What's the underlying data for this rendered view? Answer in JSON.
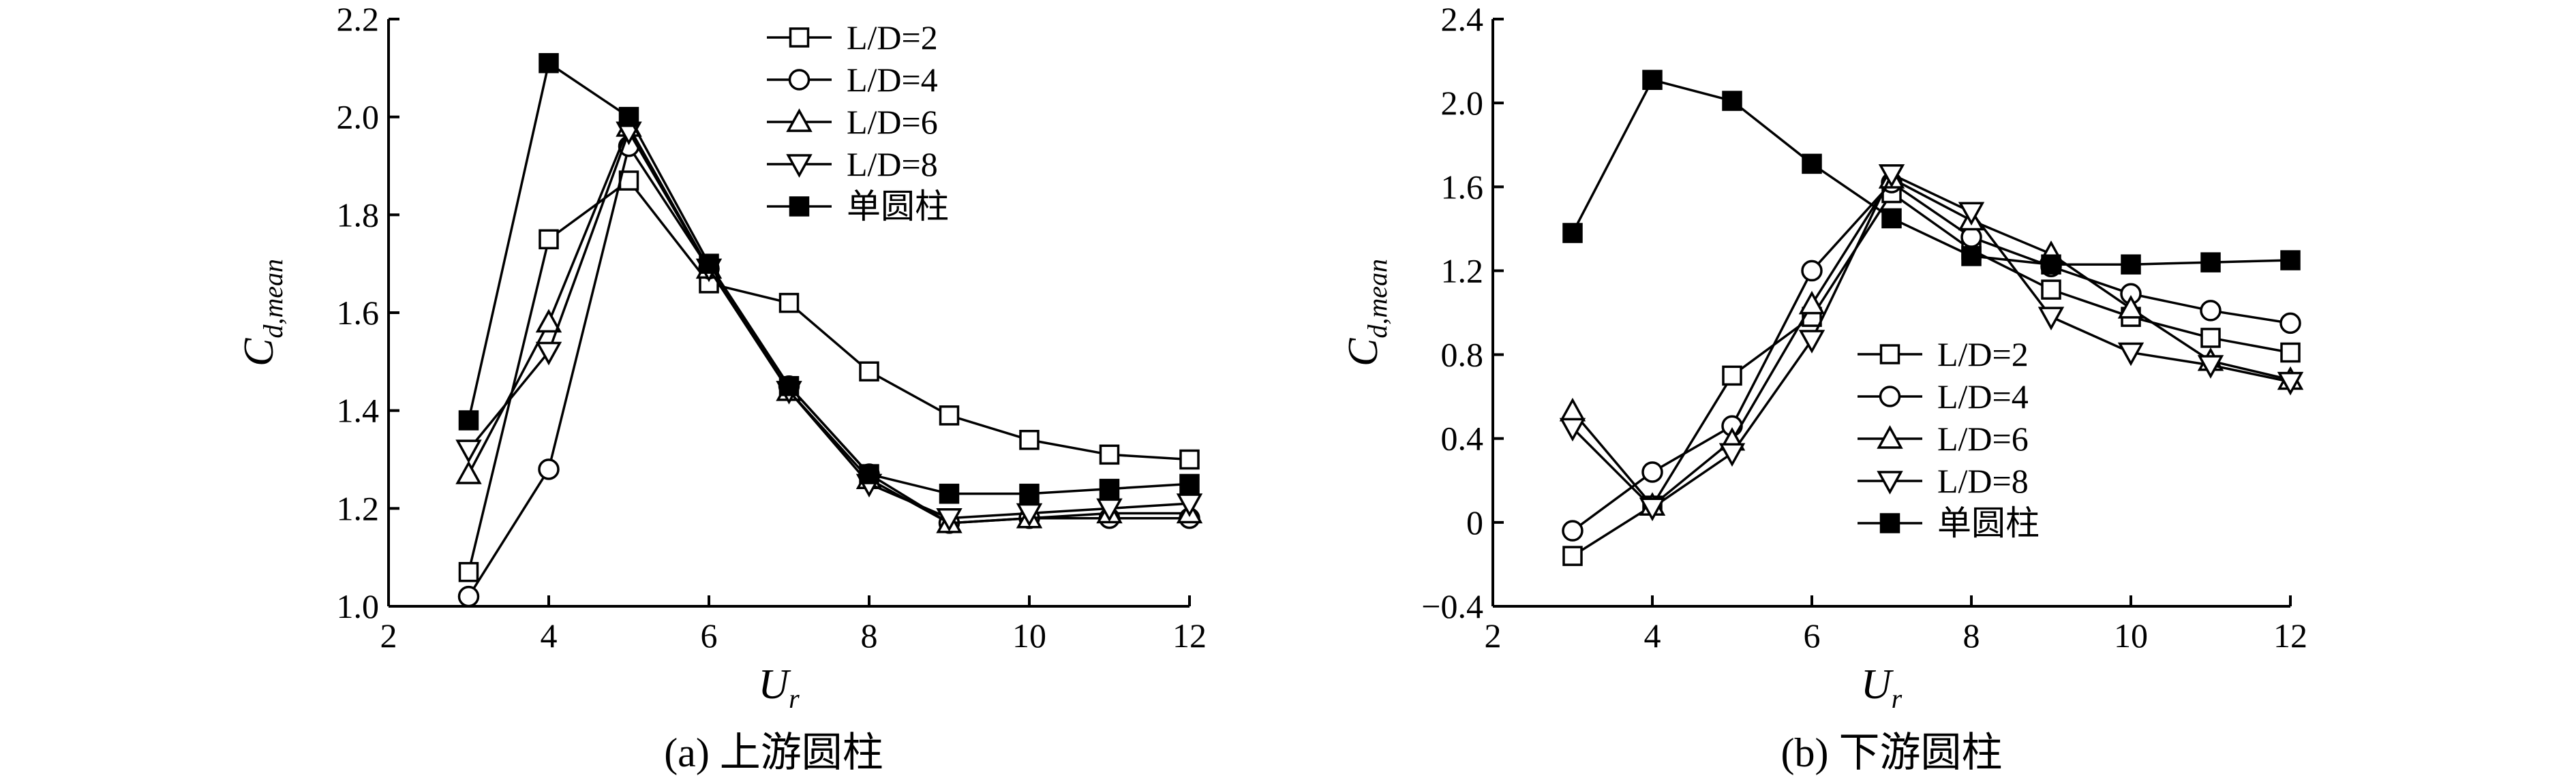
{
  "chart_data": [
    {
      "type": "line",
      "caption": "(a) 上游圆柱",
      "xlabel": "U",
      "xlabel_sub": "r",
      "ylabel": "C",
      "ylabel_sub": "d,mean",
      "xlim": [
        2,
        12
      ],
      "ylim": [
        1.0,
        2.2
      ],
      "xticks": [
        "2",
        "4",
        "6",
        "8",
        "10",
        "12"
      ],
      "yticks": [
        "1.0",
        "1.2",
        "1.4",
        "1.6",
        "1.8",
        "2.0",
        "2.2"
      ],
      "legend_position": "top-right",
      "x": [
        3,
        4,
        5,
        6,
        7,
        8,
        9,
        10,
        11,
        12
      ],
      "series": [
        {
          "name": "L/D=2",
          "marker": "square-open",
          "values": [
            1.07,
            1.75,
            1.87,
            1.66,
            1.62,
            1.48,
            1.39,
            1.34,
            1.31,
            1.3
          ]
        },
        {
          "name": "L/D=4",
          "marker": "circle-open",
          "values": [
            1.02,
            1.28,
            1.94,
            1.69,
            1.45,
            1.27,
            1.17,
            1.18,
            1.18,
            1.18
          ]
        },
        {
          "name": "L/D=6",
          "marker": "triangle-up-open",
          "values": [
            1.27,
            1.58,
            1.98,
            1.69,
            1.44,
            1.26,
            1.17,
            1.18,
            1.19,
            1.19
          ]
        },
        {
          "name": "L/D=8",
          "marker": "triangle-down-open",
          "values": [
            1.32,
            1.52,
            1.97,
            1.69,
            1.44,
            1.25,
            1.18,
            1.19,
            1.2,
            1.21
          ]
        },
        {
          "name": "单圆柱",
          "marker": "square-filled",
          "values": [
            1.38,
            2.11,
            2.0,
            1.7,
            1.45,
            1.27,
            1.23,
            1.23,
            1.24,
            1.25
          ]
        }
      ]
    },
    {
      "type": "line",
      "caption": "(b) 下游圆柱",
      "xlabel": "U",
      "xlabel_sub": "r",
      "ylabel": "C",
      "ylabel_sub": "d,mean",
      "xlim": [
        2,
        12
      ],
      "ylim": [
        -0.4,
        2.4
      ],
      "xticks": [
        "2",
        "4",
        "6",
        "8",
        "10",
        "12"
      ],
      "yticks": [
        "−0.4",
        "0",
        "0.4",
        "0.8",
        "1.2",
        "1.6",
        "2.0",
        "2.4"
      ],
      "legend_position": "center-left",
      "x": [
        3,
        4,
        5,
        6,
        7,
        8,
        9,
        10,
        11,
        12
      ],
      "series": [
        {
          "name": "L/D=2",
          "marker": "square-open",
          "values": [
            -0.16,
            0.08,
            0.7,
            0.98,
            1.57,
            1.3,
            1.11,
            0.98,
            0.88,
            0.81
          ]
        },
        {
          "name": "L/D=4",
          "marker": "circle-open",
          "values": [
            -0.04,
            0.24,
            0.46,
            1.2,
            1.62,
            1.36,
            1.22,
            1.09,
            1.01,
            0.95
          ]
        },
        {
          "name": "L/D=6",
          "marker": "triangle-up-open",
          "values": [
            0.53,
            0.08,
            0.39,
            1.04,
            1.64,
            1.44,
            1.28,
            1.02,
            0.77,
            0.68
          ]
        },
        {
          "name": "L/D=8",
          "marker": "triangle-down-open",
          "values": [
            0.45,
            0.07,
            0.33,
            0.87,
            1.66,
            1.48,
            0.98,
            0.81,
            0.75,
            0.67
          ]
        },
        {
          "name": "单圆柱",
          "marker": "square-filled",
          "values": [
            1.38,
            2.11,
            2.01,
            1.71,
            1.45,
            1.27,
            1.23,
            1.23,
            1.24,
            1.25
          ]
        }
      ]
    }
  ]
}
